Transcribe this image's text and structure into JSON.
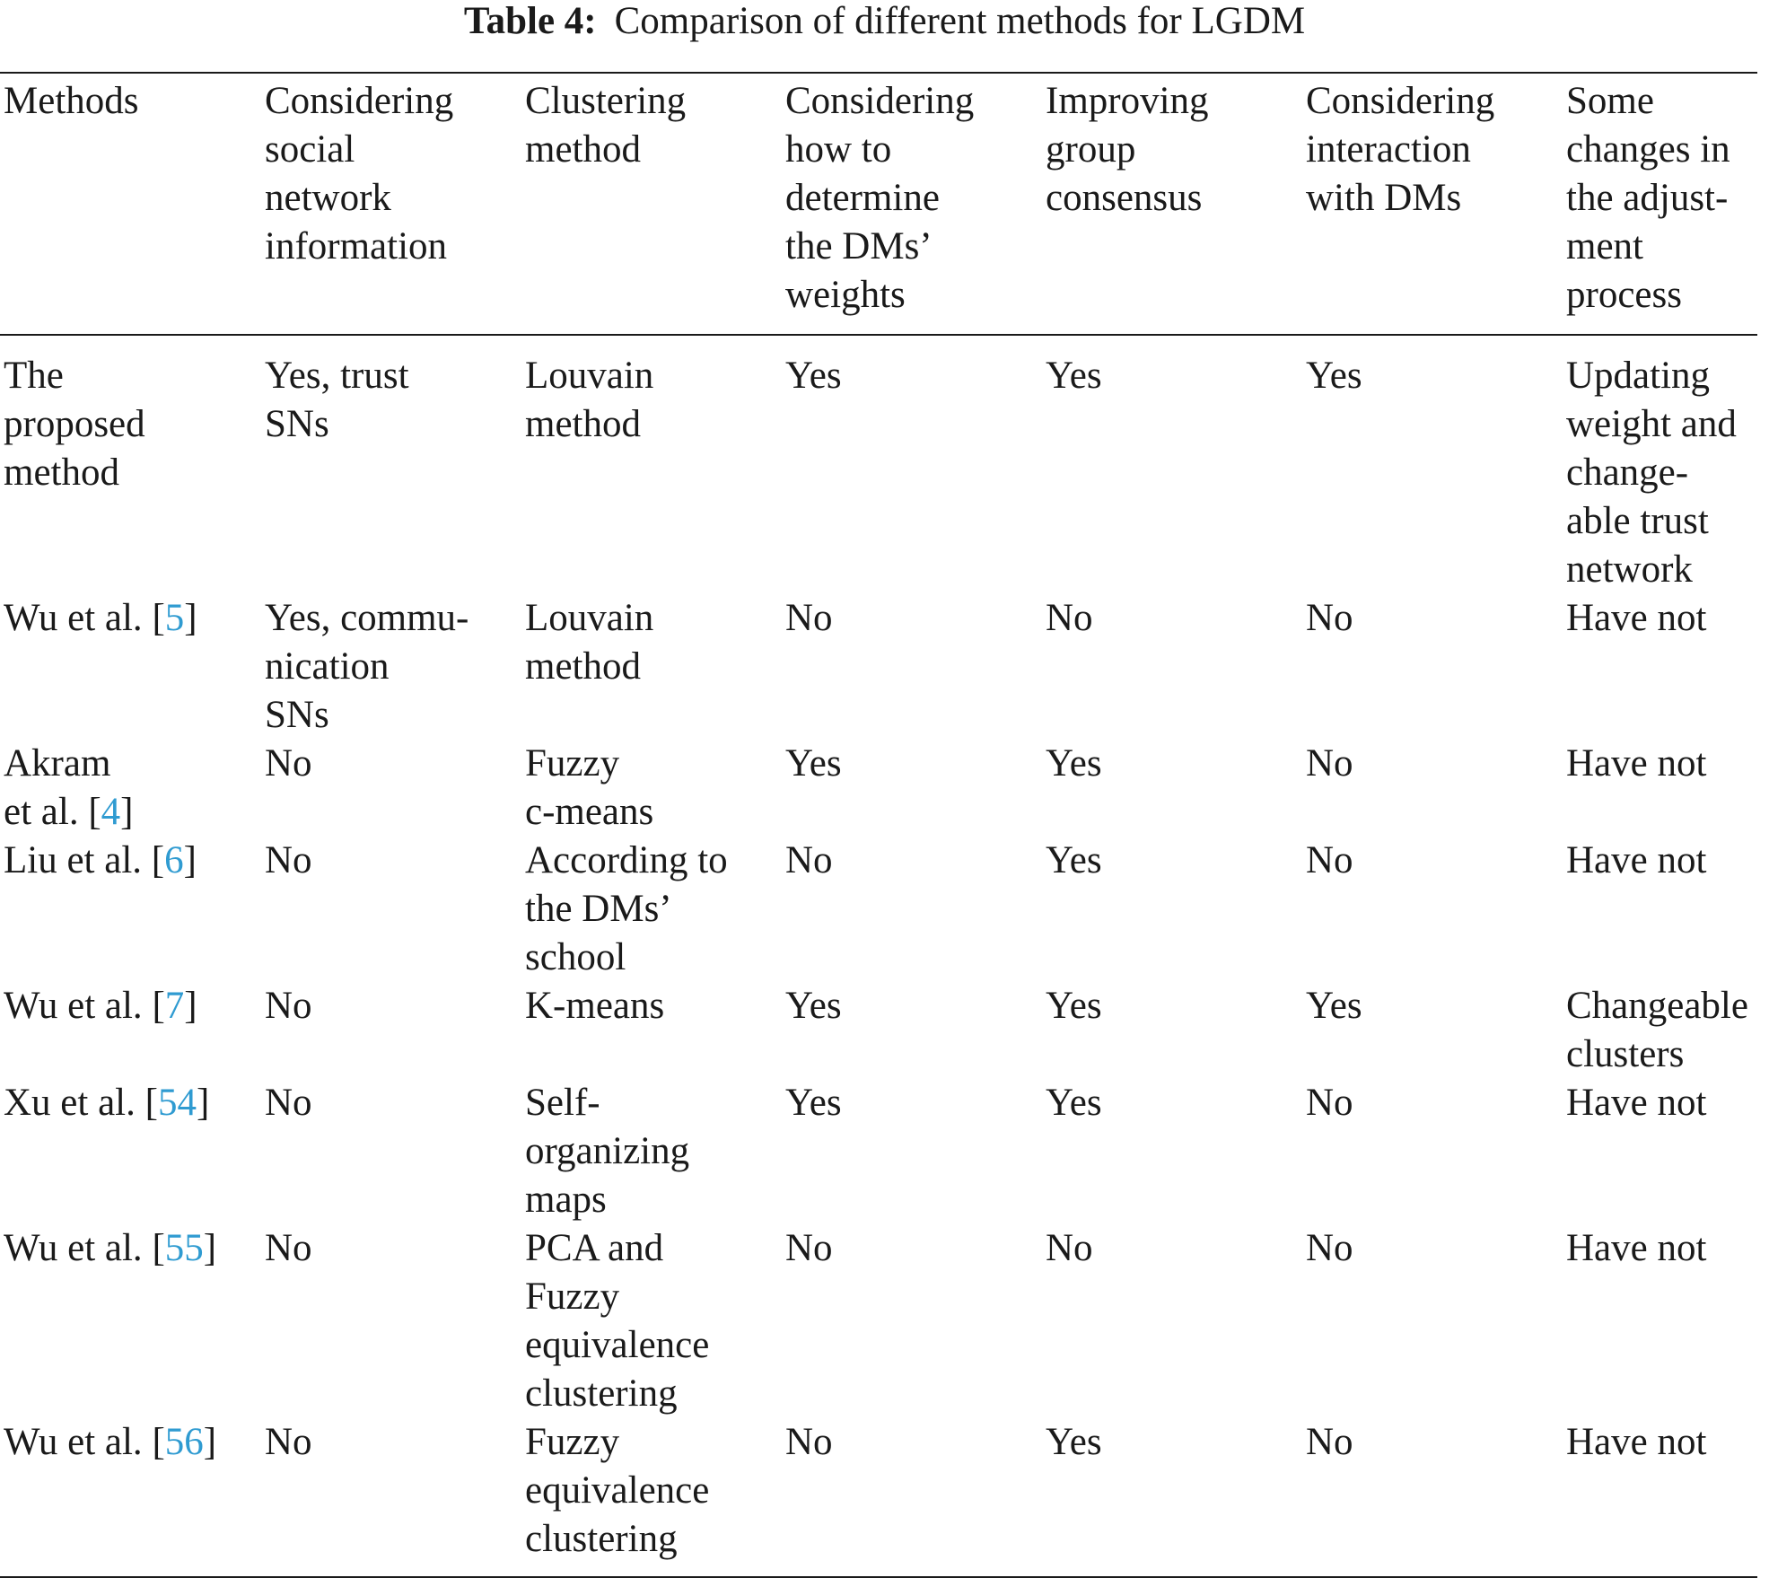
{
  "caption": {
    "label": "Table 4:",
    "text": "Comparison of different methods for LGDM"
  },
  "table": {
    "headers": [
      "Methods",
      "Considering\nsocial\nnetwork\ninformation",
      "Clustering\nmethod",
      "Considering\nhow to\ndetermine\nthe DMs’\nweights",
      "Improving\ngroup\nconsensus",
      "Considering\ninteraction\nwith DMs",
      "Some\nchanges in\nthe adjust-\nment\nprocess"
    ],
    "rows": [
      {
        "method": "The\nproposed\nmethod",
        "cite": "",
        "social": "Yes, trust\nSNs",
        "clustering": "Louvain\nmethod",
        "weights": "Yes",
        "consensus": "Yes",
        "interaction": "Yes",
        "changes": "Updating\nweight and\nchange-\nable trust\nnetwork"
      },
      {
        "method": "Wu et al.",
        "cite": "5",
        "social": "Yes, commu-\nnication\nSNs",
        "clustering": "Louvain\nmethod",
        "weights": "No",
        "consensus": "No",
        "interaction": "No",
        "changes": "Have not"
      },
      {
        "method": "Akram\net al.",
        "cite": "4",
        "social": "No",
        "clustering": "Fuzzy\nc-means",
        "weights": "Yes",
        "consensus": "Yes",
        "interaction": "No",
        "changes": "Have not"
      },
      {
        "method": "Liu et al.",
        "cite": "6",
        "social": "No",
        "clustering": "According to\nthe DMs’\nschool",
        "weights": "No",
        "consensus": "Yes",
        "interaction": "No",
        "changes": "Have not"
      },
      {
        "method": "Wu et al.",
        "cite": "7",
        "social": "No",
        "clustering": "K-means",
        "weights": "Yes",
        "consensus": "Yes",
        "interaction": "Yes",
        "changes": "Changeable\nclusters"
      },
      {
        "method": "Xu et al.",
        "cite": "54",
        "social": "No",
        "clustering": "Self-\norganizing\nmaps",
        "weights": "Yes",
        "consensus": "Yes",
        "interaction": "No",
        "changes": "Have not"
      },
      {
        "method": "Wu et al.",
        "cite": "55",
        "social": "No",
        "clustering": "PCA and\nFuzzy\nequivalence\nclustering",
        "weights": "No",
        "consensus": "No",
        "interaction": "No",
        "changes": "Have not"
      },
      {
        "method": "Wu et al.",
        "cite": "56",
        "social": "No",
        "clustering": "Fuzzy\nequivalence\nclustering",
        "weights": "No",
        "consensus": "Yes",
        "interaction": "No",
        "changes": "Have not"
      }
    ]
  },
  "colors": {
    "text": "#1a1a1a",
    "citation": "#2f9bd1"
  }
}
